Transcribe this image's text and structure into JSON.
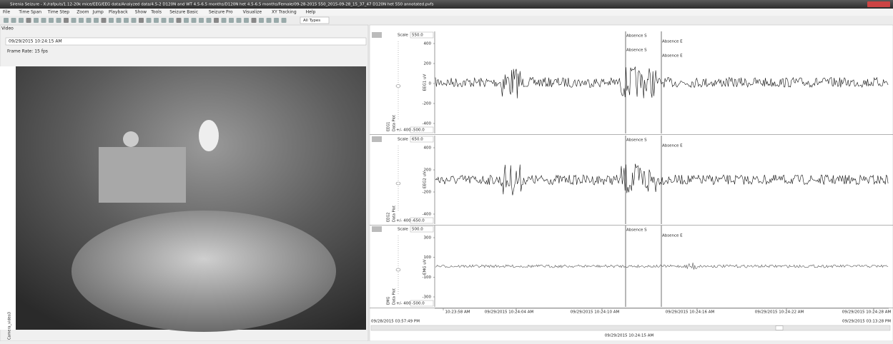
{
  "window": {
    "title": "Sirenia Seizure - X:/rafpuls/1.12-20k mice/EEG/EEG data/Analyzed data/4.5-2 D120N and WT 4.5-6.5 months/D120N het 4.5-6.5 months/Female/09-28-2015 550_2015-09-28_15_37_47 D120N het 550 annotated.pvfs"
  },
  "menu": [
    "File",
    "Time Span",
    "Time Step",
    "Zoom",
    "Jump",
    "Playback",
    "Show",
    "Tools",
    "Seizure Basic",
    "Seizure Pro",
    "Visualize",
    "XY Tracking",
    "Help"
  ],
  "toolbar": {
    "type_filter": "All Types"
  },
  "video": {
    "panel_title": "Video",
    "timestamp": "09/29/2015 10:24:15 AM",
    "frame_rate": "Frame Rate:  15 fps",
    "camera": "Camera_video3"
  },
  "channels": [
    {
      "name": "EEG1",
      "plot_label": "Data Plot",
      "scale_label": "Scale",
      "scale_max": "550.0",
      "scale_min": "-500.0",
      "range": "+/- 400",
      "axis_label": "EEG1 uV",
      "yticks": [
        "400",
        "200",
        "0",
        "-200",
        "-400"
      ],
      "annotations": [
        "Absence S",
        "Absence S",
        "Absence E",
        "Absence E"
      ]
    },
    {
      "name": "EEG2",
      "plot_label": "Data Plot",
      "scale_label": "Scale",
      "scale_max": "650.0",
      "scale_min": "-650.0",
      "range": "+/- 400",
      "axis_label": "EEG2 uV",
      "yticks": [
        "400",
        "200",
        "-200",
        "-400"
      ],
      "annotations": [
        "Absence S",
        "Absence E"
      ]
    },
    {
      "name": "EMG",
      "plot_label": "Data Plot",
      "scale_label": "Scale",
      "scale_max": "500.0",
      "scale_min": "-500.0",
      "range": "+/- 400",
      "axis_label": "EMG uV",
      "yticks": [
        "300",
        "100",
        "-100",
        "-300"
      ],
      "annotations": [
        "Absence S",
        "Absence E"
      ]
    }
  ],
  "time_axis": [
    "10:23:58 AM",
    "09/29/2015 10:24:04 AM",
    "09/29/2015 10:24:10 AM",
    "09/29/2015 10:24:16 AM",
    "09/29/2015 10:24:22 AM",
    "09/29/2015 10:24:28 AM"
  ],
  "timeline": {
    "start": "09/28/2015 03:57:49 PM",
    "end": "09/29/2015 03:13:28 PM",
    "current": "09/29/2015 10:24:15 AM"
  }
}
